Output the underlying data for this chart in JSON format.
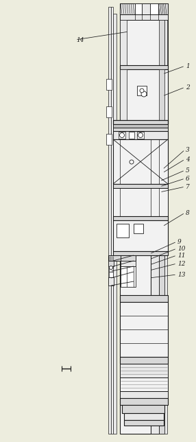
{
  "bg_color": "#ededde",
  "line_color": "#1a1a1a",
  "label_items": [
    [
      "1",
      [
        237,
        108
      ],
      [
        270,
        96
      ]
    ],
    [
      "2",
      [
        237,
        140
      ],
      [
        270,
        127
      ]
    ],
    [
      "3",
      [
        237,
        247
      ],
      [
        270,
        218
      ]
    ],
    [
      "4",
      [
        237,
        252
      ],
      [
        270,
        232
      ]
    ],
    [
      "5",
      [
        233,
        264
      ],
      [
        270,
        248
      ]
    ],
    [
      "6",
      [
        233,
        272
      ],
      [
        270,
        260
      ]
    ],
    [
      "7",
      [
        233,
        280
      ],
      [
        270,
        272
      ]
    ],
    [
      "8",
      [
        237,
        330
      ],
      [
        270,
        310
      ]
    ],
    [
      "9",
      [
        218,
        370
      ],
      [
        258,
        352
      ]
    ],
    [
      "10",
      [
        218,
        378
      ],
      [
        258,
        362
      ]
    ],
    [
      "11",
      [
        218,
        386
      ],
      [
        258,
        372
      ]
    ],
    [
      "12",
      [
        218,
        394
      ],
      [
        258,
        384
      ]
    ],
    [
      "13",
      [
        218,
        405
      ],
      [
        258,
        400
      ]
    ],
    [
      "14",
      [
        188,
        46
      ],
      [
        110,
        58
      ]
    ]
  ]
}
